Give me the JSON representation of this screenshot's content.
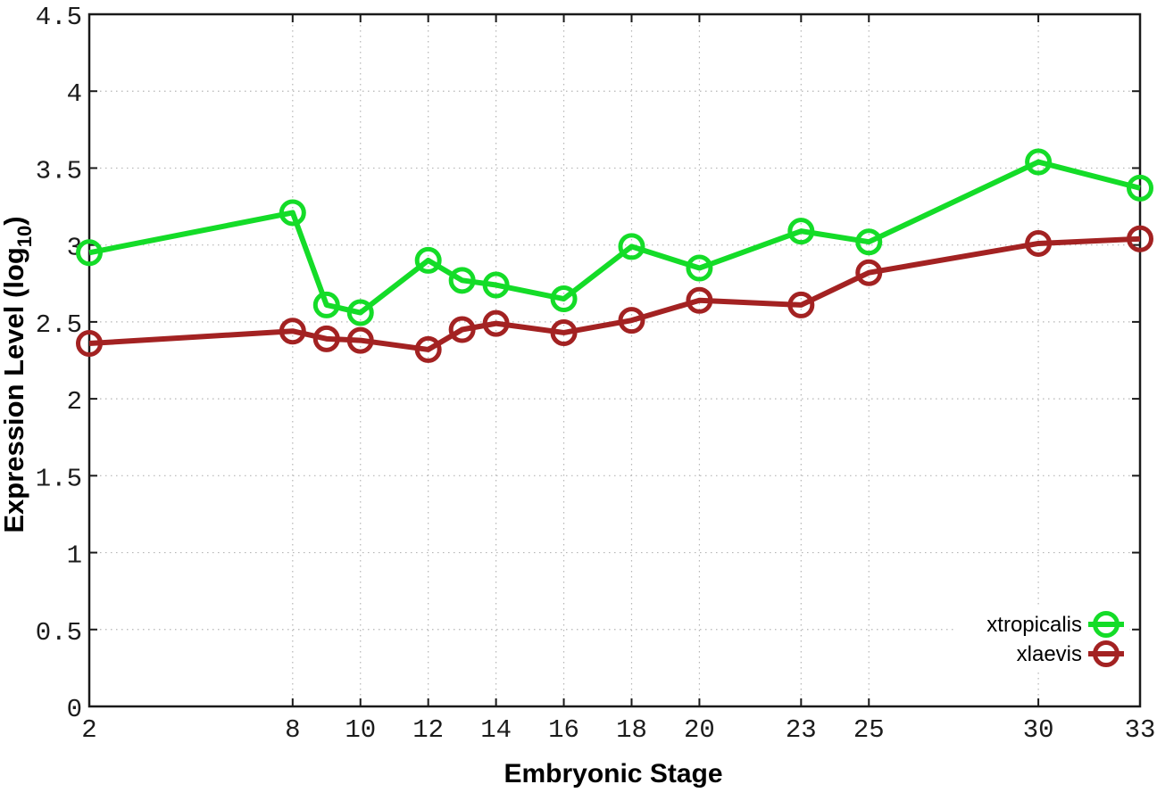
{
  "chart_data": {
    "type": "line",
    "xlabel": "Embryonic Stage",
    "ylabel": "Expression Level (log10)",
    "ylabel_parts": {
      "main": "Expression Level (log",
      "sub": "10",
      "close": ")"
    },
    "x": [
      2,
      8,
      9,
      10,
      12,
      13,
      14,
      16,
      18,
      20,
      23,
      25,
      30,
      33
    ],
    "xticks": [
      2,
      8,
      10,
      12,
      14,
      16,
      18,
      20,
      23,
      25,
      30,
      33
    ],
    "yticks": [
      0,
      0.5,
      1,
      1.5,
      2,
      2.5,
      3,
      3.5,
      4,
      4.5
    ],
    "xlim": [
      2,
      33
    ],
    "ylim": [
      0,
      4.5
    ],
    "grid": "dotted",
    "marker": "open-circle",
    "legend": {
      "position": "inside-bottom-right",
      "entries": [
        "xtropicalis",
        "xlaevis"
      ]
    },
    "series": [
      {
        "name": "xtropicalis",
        "color": "#14dc28",
        "values": [
          2.95,
          3.21,
          2.61,
          2.56,
          2.9,
          2.77,
          2.74,
          2.65,
          2.99,
          2.85,
          3.09,
          3.02,
          3.54,
          3.37
        ]
      },
      {
        "name": "xlaevis",
        "color": "#a32222",
        "values": [
          2.36,
          2.44,
          2.39,
          2.38,
          2.32,
          2.45,
          2.49,
          2.43,
          2.51,
          2.64,
          2.61,
          2.82,
          3.01,
          3.04
        ]
      }
    ],
    "colors": {
      "axis": "#1a1a1a",
      "grid": "#b5b5b5",
      "tick_text": "#1c1c1c",
      "title_text": "#000000",
      "background": "#ffffff"
    }
  }
}
